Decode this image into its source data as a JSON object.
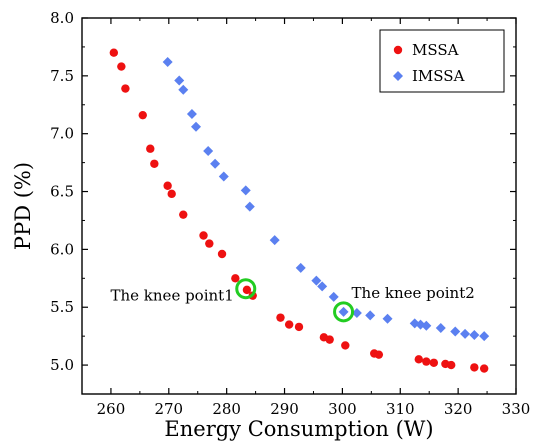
{
  "chart_data": {
    "type": "scatter",
    "xlabel": "Energy Consumption (W)",
    "ylabel": "PPD (%)",
    "xlim": [
      255,
      330
    ],
    "ylim": [
      4.75,
      8.0
    ],
    "xticks": [
      260,
      270,
      280,
      290,
      300,
      310,
      320,
      330
    ],
    "yticks": [
      5.0,
      5.5,
      6.0,
      6.5,
      7.0,
      7.5,
      8.0
    ],
    "xtick_labels": [
      "260",
      "270",
      "280",
      "290",
      "300",
      "310",
      "320",
      "330"
    ],
    "ytick_labels": [
      "5.0",
      "5.5",
      "6.0",
      "6.5",
      "7.0",
      "7.5",
      "8.0"
    ],
    "grid": false,
    "legend_position": "top-right",
    "series": [
      {
        "name": "MSSA",
        "marker": "circle",
        "color": "#ee1111",
        "points": [
          [
            260.5,
            7.7
          ],
          [
            261.8,
            7.58
          ],
          [
            262.5,
            7.39
          ],
          [
            265.5,
            7.16
          ],
          [
            266.8,
            6.87
          ],
          [
            267.5,
            6.74
          ],
          [
            269.8,
            6.55
          ],
          [
            270.5,
            6.48
          ],
          [
            272.5,
            6.3
          ],
          [
            276.0,
            6.12
          ],
          [
            277.0,
            6.05
          ],
          [
            279.2,
            5.96
          ],
          [
            281.5,
            5.75
          ],
          [
            283.5,
            5.65
          ],
          [
            284.5,
            5.6
          ],
          [
            289.3,
            5.41
          ],
          [
            290.8,
            5.35
          ],
          [
            292.5,
            5.33
          ],
          [
            296.8,
            5.24
          ],
          [
            297.8,
            5.22
          ],
          [
            300.5,
            5.17
          ],
          [
            305.5,
            5.1
          ],
          [
            306.3,
            5.09
          ],
          [
            313.2,
            5.05
          ],
          [
            314.5,
            5.03
          ],
          [
            315.8,
            5.02
          ],
          [
            317.8,
            5.01
          ],
          [
            318.8,
            5.0
          ],
          [
            322.8,
            4.98
          ],
          [
            324.5,
            4.97
          ]
        ]
      },
      {
        "name": "IMSSA",
        "marker": "diamond",
        "color": "#5b80f0",
        "points": [
          [
            269.8,
            7.62
          ],
          [
            271.8,
            7.46
          ],
          [
            272.5,
            7.38
          ],
          [
            274.0,
            7.17
          ],
          [
            274.7,
            7.06
          ],
          [
            276.8,
            6.85
          ],
          [
            278.0,
            6.74
          ],
          [
            279.5,
            6.63
          ],
          [
            283.3,
            6.51
          ],
          [
            284.0,
            6.37
          ],
          [
            288.3,
            6.08
          ],
          [
            292.8,
            5.84
          ],
          [
            295.5,
            5.73
          ],
          [
            296.5,
            5.68
          ],
          [
            298.5,
            5.59
          ],
          [
            300.2,
            5.46
          ],
          [
            302.5,
            5.45
          ],
          [
            304.8,
            5.43
          ],
          [
            307.8,
            5.4
          ],
          [
            312.5,
            5.36
          ],
          [
            313.5,
            5.35
          ],
          [
            314.5,
            5.34
          ],
          [
            317.0,
            5.32
          ],
          [
            319.5,
            5.29
          ],
          [
            321.2,
            5.27
          ],
          [
            322.8,
            5.26
          ],
          [
            324.5,
            5.25
          ]
        ]
      }
    ],
    "highlights": [
      {
        "x": 283.3,
        "y": 5.66,
        "color": "#22cc22"
      },
      {
        "x": 300.2,
        "y": 5.46,
        "color": "#22cc22"
      }
    ],
    "annotations": [
      {
        "text": "The knee point1",
        "x": 283.3,
        "y": 5.66,
        "anchor": "left"
      },
      {
        "text": "The knee point2",
        "x": 300.2,
        "y": 5.46,
        "anchor": "right-above"
      }
    ]
  }
}
